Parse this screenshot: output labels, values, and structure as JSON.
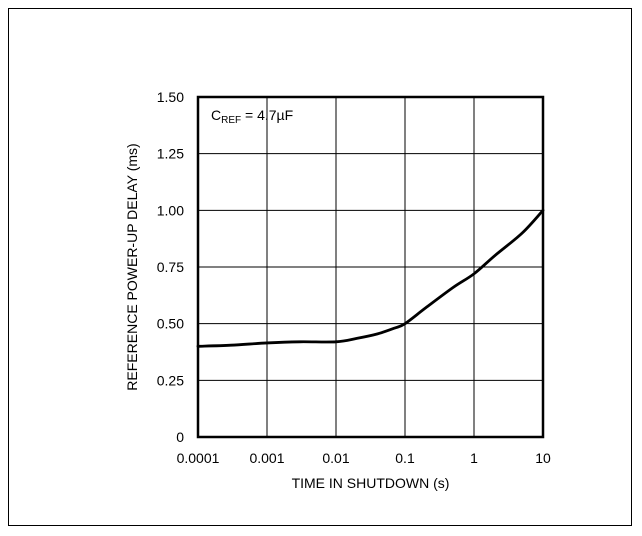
{
  "chart_data": {
    "type": "line",
    "xlabel": "TIME IN SHUTDOWN (s)",
    "ylabel": "REFERENCE POWER-UP DELAY (ms)",
    "xscale": "log",
    "xlim": [
      0.0001,
      10
    ],
    "ylim": [
      0,
      1.5
    ],
    "x_ticks": [
      0.0001,
      0.001,
      0.01,
      0.1,
      1,
      10
    ],
    "x_tick_labels": [
      "0.0001",
      "0.001",
      "0.01",
      "0.1",
      "1",
      "10"
    ],
    "y_ticks": [
      0,
      0.25,
      0.5,
      0.75,
      1.0,
      1.25,
      1.5
    ],
    "y_tick_labels": [
      "0",
      "0.25",
      "0.50",
      "0.75",
      "1.00",
      "1.25",
      "1.50"
    ],
    "grid": true,
    "annotation": {
      "prefix": "C",
      "subscript": "REF",
      "suffix": " = 4.7µF"
    },
    "series": [
      {
        "x": [
          0.0001,
          0.0003,
          0.001,
          0.003,
          0.01,
          0.02,
          0.04,
          0.07,
          0.1,
          0.2,
          0.5,
          1,
          2,
          5,
          10
        ],
        "y": [
          0.4,
          0.405,
          0.415,
          0.42,
          0.42,
          0.435,
          0.455,
          0.48,
          0.5,
          0.57,
          0.66,
          0.72,
          0.8,
          0.9,
          1.0
        ]
      }
    ]
  }
}
